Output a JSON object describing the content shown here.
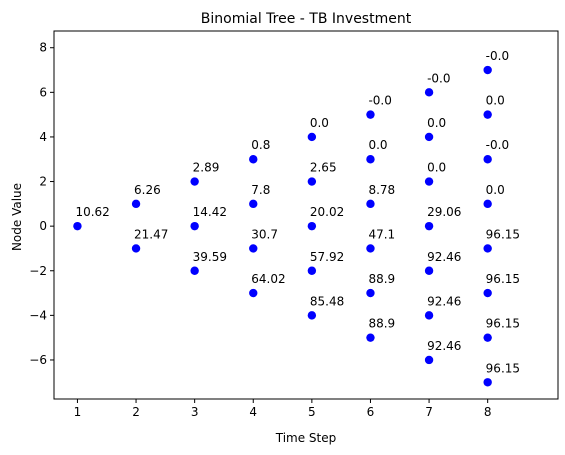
{
  "chart_data": {
    "type": "scatter",
    "title": "Binomial Tree - TB Investment",
    "xlabel": "Time Step",
    "ylabel": "Node Value",
    "xlim": [
      0.6,
      9.2
    ],
    "ylim": [
      -7.75,
      8.75
    ],
    "xticks": [
      1,
      2,
      3,
      4,
      5,
      6,
      7,
      8
    ],
    "yticks": [
      -6,
      -4,
      -2,
      0,
      2,
      4,
      6,
      8
    ],
    "xtick_labels": [
      "1",
      "2",
      "3",
      "4",
      "5",
      "6",
      "7",
      "8"
    ],
    "ytick_labels": [
      "−6",
      "−4",
      "−2",
      "0",
      "2",
      "4",
      "6",
      "8"
    ],
    "grid": false,
    "marker_color": "#0000ff",
    "points": [
      {
        "x": 1,
        "y": 0,
        "label": "10.62"
      },
      {
        "x": 2,
        "y": 1,
        "label": "6.26"
      },
      {
        "x": 2,
        "y": -1,
        "label": "21.47"
      },
      {
        "x": 3,
        "y": 2,
        "label": "2.89"
      },
      {
        "x": 3,
        "y": 0,
        "label": "14.42"
      },
      {
        "x": 3,
        "y": -2,
        "label": "39.59"
      },
      {
        "x": 4,
        "y": 3,
        "label": "0.8"
      },
      {
        "x": 4,
        "y": 1,
        "label": "7.8"
      },
      {
        "x": 4,
        "y": -1,
        "label": "30.7"
      },
      {
        "x": 4,
        "y": -3,
        "label": "64.02"
      },
      {
        "x": 5,
        "y": 4,
        "label": "0.0"
      },
      {
        "x": 5,
        "y": 2,
        "label": "2.65"
      },
      {
        "x": 5,
        "y": 0,
        "label": "20.02"
      },
      {
        "x": 5,
        "y": -2,
        "label": "57.92"
      },
      {
        "x": 5,
        "y": -4,
        "label": "85.48"
      },
      {
        "x": 6,
        "y": 5,
        "label": "-0.0"
      },
      {
        "x": 6,
        "y": 3,
        "label": "0.0"
      },
      {
        "x": 6,
        "y": 1,
        "label": "8.78"
      },
      {
        "x": 6,
        "y": -1,
        "label": "47.1"
      },
      {
        "x": 6,
        "y": -3,
        "label": "88.9"
      },
      {
        "x": 6,
        "y": -5,
        "label": "88.9"
      },
      {
        "x": 7,
        "y": 6,
        "label": "-0.0"
      },
      {
        "x": 7,
        "y": 4,
        "label": "0.0"
      },
      {
        "x": 7,
        "y": 2,
        "label": "0.0"
      },
      {
        "x": 7,
        "y": 0,
        "label": "29.06"
      },
      {
        "x": 7,
        "y": -2,
        "label": "92.46"
      },
      {
        "x": 7,
        "y": -4,
        "label": "92.46"
      },
      {
        "x": 7,
        "y": -6,
        "label": "92.46"
      },
      {
        "x": 8,
        "y": 7,
        "label": "-0.0"
      },
      {
        "x": 8,
        "y": 5,
        "label": "0.0"
      },
      {
        "x": 8,
        "y": 3,
        "label": "-0.0"
      },
      {
        "x": 8,
        "y": 1,
        "label": "0.0"
      },
      {
        "x": 8,
        "y": -1,
        "label": "96.15"
      },
      {
        "x": 8,
        "y": -3,
        "label": "96.15"
      },
      {
        "x": 8,
        "y": -5,
        "label": "96.15"
      },
      {
        "x": 8,
        "y": -7,
        "label": "96.15"
      }
    ]
  }
}
